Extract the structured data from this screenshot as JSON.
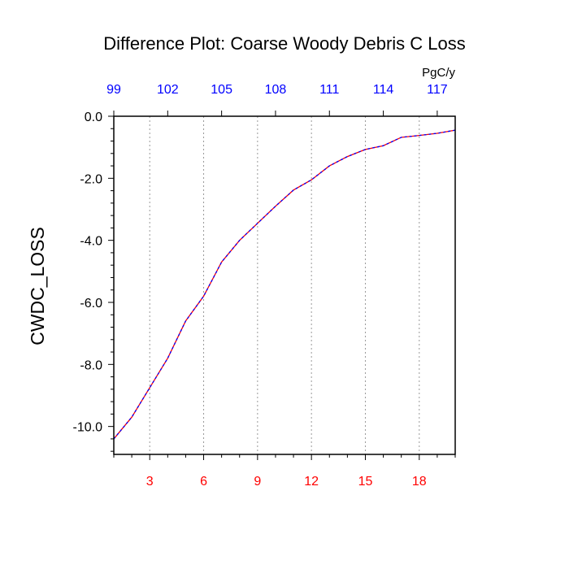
{
  "chart_data": {
    "type": "line",
    "title": "Difference Plot: Coarse Woody Debris C Loss",
    "ylabel": "CWDC_LOSS",
    "xlabel": "",
    "top_axis_unit": "PgC/y",
    "xlim": [
      1,
      20
    ],
    "ylim": [
      -10.9,
      0
    ],
    "grid": "vertical-dotted",
    "x_ticks": [
      {
        "value": 3,
        "label": "3"
      },
      {
        "value": 6,
        "label": "6"
      },
      {
        "value": 9,
        "label": "9"
      },
      {
        "value": 12,
        "label": "12"
      },
      {
        "value": 15,
        "label": "15"
      },
      {
        "value": 18,
        "label": "18"
      }
    ],
    "top_ticks": [
      {
        "value": 1,
        "label": "99"
      },
      {
        "value": 4,
        "label": "102"
      },
      {
        "value": 7,
        "label": "105"
      },
      {
        "value": 10,
        "label": "108"
      },
      {
        "value": 13,
        "label": "111"
      },
      {
        "value": 16,
        "label": "114"
      },
      {
        "value": 19,
        "label": "117"
      }
    ],
    "y_ticks": [
      {
        "value": 0,
        "label": "0.0"
      },
      {
        "value": -2,
        "label": "-2.0"
      },
      {
        "value": -4,
        "label": "-4.0"
      },
      {
        "value": -6,
        "label": "-6.0"
      },
      {
        "value": -8,
        "label": "-8.0"
      },
      {
        "value": -10,
        "label": "-10.0"
      }
    ],
    "colors": {
      "bottom_ticks": "#ff0000",
      "top_ticks": "#0000ff",
      "line_a": "#ff0000",
      "line_b": "#0000ff",
      "axes": "#000000",
      "grid": "#999999"
    },
    "series": [
      {
        "x": [
          1,
          2,
          3,
          4,
          5,
          6,
          7,
          8,
          9,
          10,
          11,
          12,
          13,
          14,
          15,
          16,
          17,
          18,
          19,
          20
        ],
        "values": [
          -10.4,
          -9.7,
          -8.75,
          -7.8,
          -6.6,
          -5.8,
          -4.7,
          -4.0,
          -3.45,
          -2.9,
          -2.38,
          -2.05,
          -1.6,
          -1.3,
          -1.07,
          -0.95,
          -0.68,
          -0.62,
          -0.55,
          -0.45
        ]
      }
    ]
  }
}
